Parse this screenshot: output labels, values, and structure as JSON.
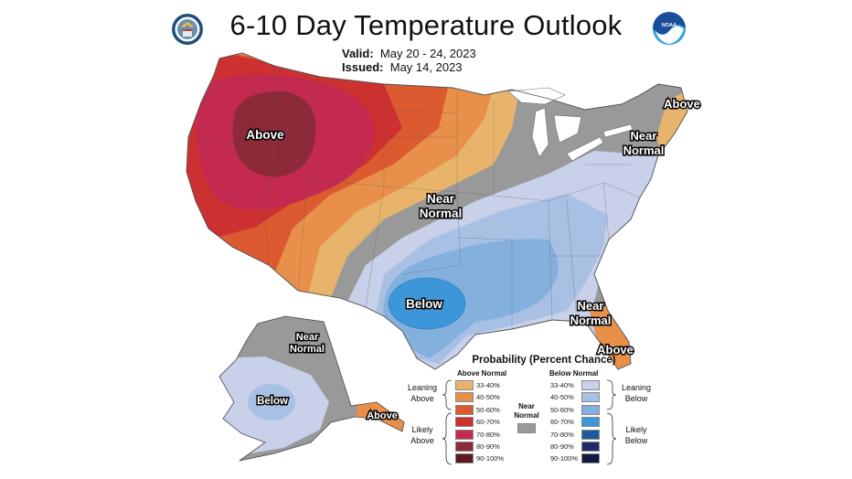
{
  "title": "6-10 Day Temperature Outlook",
  "valid_label": "Valid:",
  "valid_value": "May 20 - 24, 2023",
  "issued_label": "Issued:",
  "issued_value": "May 14, 2023",
  "noaa_logo_text": "NOAA",
  "map_labels": {
    "west_above": "Above",
    "ne_above": "Above",
    "ne_near_1": "Near",
    "ne_near_2": "Normal",
    "central_near_1": "Near",
    "central_near_2": "Normal",
    "south_below": "Below",
    "fl_near_1": "Near",
    "fl_near_2": "Normal",
    "fl_above": "Above",
    "ak_near_1": "Near",
    "ak_near_2": "Normal",
    "ak_below": "Below",
    "ak_above": "Above"
  },
  "legend": {
    "title": "Probability (Percent Chance)",
    "above_header": "Above Normal",
    "below_header": "Below Normal",
    "near_1": "Near",
    "near_2": "Normal",
    "leaning_above_1": "Leaning",
    "leaning_above_2": "Above",
    "likely_above_1": "Likely",
    "likely_above_2": "Above",
    "leaning_below_1": "Leaning",
    "leaning_below_2": "Below",
    "likely_below_1": "Likely",
    "likely_below_2": "Below",
    "above_rows": [
      {
        "label": "33-40%",
        "color": "#e8b46c"
      },
      {
        "label": "40-50%",
        "color": "#e8904a"
      },
      {
        "label": "50-60%",
        "color": "#dc5a30"
      },
      {
        "label": "60-70%",
        "color": "#cc3030"
      },
      {
        "label": "70-80%",
        "color": "#c42a50"
      },
      {
        "label": "80-90%",
        "color": "#8c2a3a"
      },
      {
        "label": "90-100%",
        "color": "#5a1a20"
      }
    ],
    "below_rows": [
      {
        "label": "33-40%",
        "color": "#c8d0ea"
      },
      {
        "label": "40-50%",
        "color": "#a8c0e4"
      },
      {
        "label": "50-60%",
        "color": "#84b0de"
      },
      {
        "label": "60-70%",
        "color": "#3c96d8"
      },
      {
        "label": "70-80%",
        "color": "#1c5a9c"
      },
      {
        "label": "80-90%",
        "color": "#1e2a6a"
      },
      {
        "label": "90-100%",
        "color": "#14183c"
      }
    ],
    "near_color": "#999999"
  }
}
